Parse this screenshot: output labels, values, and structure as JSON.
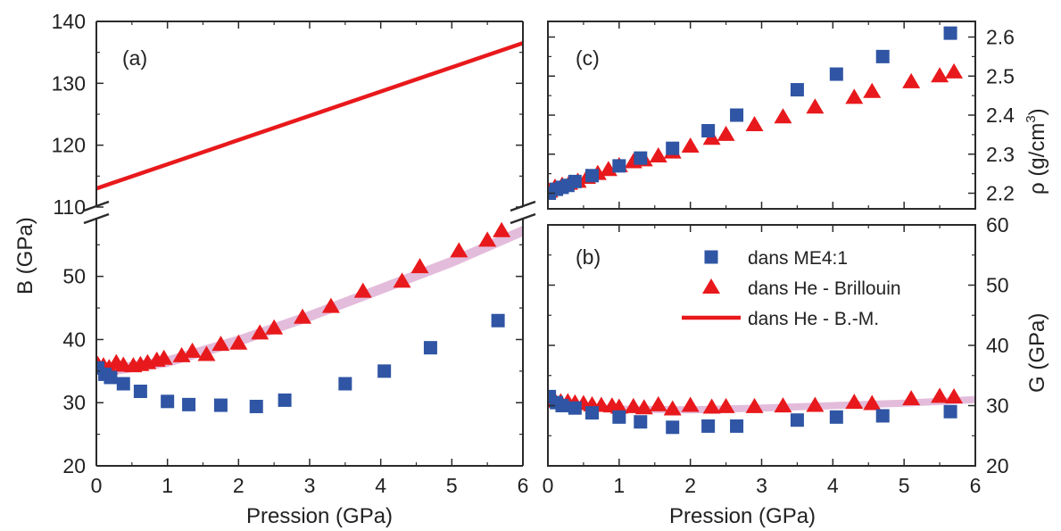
{
  "colors": {
    "blue": "#2f55a4",
    "red": "#e8191c",
    "band": "#d9a6cf",
    "axis": "#2a2a2a"
  },
  "chart_data": [
    {
      "panel": "(a)",
      "type": "scatter",
      "xlabel": "Pression (GPa)",
      "ylabel": "B (GPa)",
      "xlim": [
        0,
        6
      ],
      "xticks": [
        "0",
        "1",
        "2",
        "3",
        "4",
        "5",
        "6"
      ],
      "axis_break": true,
      "ylim_lower": [
        20,
        59
      ],
      "yticks_lower": [
        "20",
        "30",
        "40",
        "50"
      ],
      "ylim_upper": [
        110,
        140
      ],
      "yticks_upper": [
        "110",
        "120",
        "130",
        "140"
      ],
      "series": [
        {
          "name": "dans ME4:1",
          "marker": "square",
          "color": "#2f55a4",
          "x": [
            0.02,
            0.12,
            0.2,
            0.38,
            0.62,
            1.0,
            1.3,
            1.75,
            2.25,
            2.65,
            3.5,
            4.05,
            4.7,
            5.65
          ],
          "y": [
            35.5,
            34.5,
            34.0,
            33.0,
            31.8,
            30.2,
            29.7,
            29.6,
            29.4,
            30.4,
            33.0,
            35.0,
            38.7,
            43.0
          ]
        },
        {
          "name": "dans He - Brillouin",
          "marker": "triangle",
          "color": "#e8191c",
          "x": [
            0.02,
            0.1,
            0.18,
            0.28,
            0.38,
            0.52,
            0.62,
            0.72,
            0.85,
            0.95,
            1.2,
            1.35,
            1.55,
            1.75,
            2.0,
            2.3,
            2.5,
            2.9,
            3.3,
            3.75,
            4.3,
            4.55,
            5.1,
            5.5,
            5.7
          ],
          "y": [
            36.0,
            35.8,
            35.5,
            36.3,
            35.9,
            35.8,
            36.0,
            36.3,
            36.7,
            37.0,
            37.4,
            38.1,
            37.6,
            39.2,
            39.4,
            41.0,
            41.8,
            43.5,
            45.2,
            47.6,
            49.2,
            51.5,
            54.0,
            55.7,
            57.2
          ]
        },
        {
          "name": "dans He - B.-M.",
          "type": "line",
          "color": "#e8191c",
          "x": [
            0,
            6
          ],
          "y": [
            113.0,
            136.5
          ]
        }
      ],
      "band": {
        "x": [
          0.1,
          1.0,
          2.0,
          3.0,
          4.0,
          5.0,
          6.0
        ],
        "y": [
          35.0,
          36.5,
          39.8,
          43.7,
          48.0,
          52.3,
          57.2
        ]
      }
    },
    {
      "panel": "(c)",
      "type": "scatter",
      "xlabel": "",
      "ylabel": "ρ (g/cm³)",
      "ylabel_main": "ρ (g/cm",
      "ylabel_sup": "3",
      "ylabel_close": ")",
      "xlim": [
        0,
        6
      ],
      "ylim": [
        2.16,
        2.64
      ],
      "yticks": [
        "2.2",
        "2.3",
        "2.4",
        "2.5",
        "2.6"
      ],
      "series": [
        {
          "name": "dans ME4:1",
          "marker": "square",
          "color": "#2f55a4",
          "x": [
            0.02,
            0.12,
            0.2,
            0.28,
            0.38,
            0.62,
            1.0,
            1.3,
            1.75,
            2.25,
            2.65,
            3.5,
            4.05,
            4.7,
            5.65
          ],
          "y": [
            2.2,
            2.21,
            2.215,
            2.22,
            2.23,
            2.245,
            2.27,
            2.29,
            2.315,
            2.36,
            2.4,
            2.465,
            2.505,
            2.55,
            2.61
          ]
        },
        {
          "name": "dans He - Brillouin",
          "marker": "triangle",
          "color": "#e8191c",
          "x": [
            0.02,
            0.1,
            0.2,
            0.3,
            0.42,
            0.55,
            0.7,
            0.85,
            1.0,
            1.2,
            1.35,
            1.55,
            1.75,
            2.0,
            2.3,
            2.5,
            2.9,
            3.3,
            3.75,
            4.3,
            4.55,
            5.1,
            5.5,
            5.7
          ],
          "y": [
            2.205,
            2.215,
            2.22,
            2.225,
            2.23,
            2.24,
            2.25,
            2.26,
            2.27,
            2.28,
            2.285,
            2.295,
            2.305,
            2.32,
            2.34,
            2.35,
            2.375,
            2.395,
            2.42,
            2.445,
            2.46,
            2.485,
            2.5,
            2.51
          ]
        }
      ]
    },
    {
      "panel": "(b)",
      "type": "scatter",
      "xlabel": "Pression (GPa)",
      "ylabel": "G (GPa)",
      "xlim": [
        0,
        6
      ],
      "xticks": [
        "0",
        "1",
        "2",
        "3",
        "4",
        "5",
        "6"
      ],
      "ylim": [
        20,
        60
      ],
      "yticks": [
        "20",
        "30",
        "40",
        "50",
        "60"
      ],
      "legend": {
        "position": "top-right",
        "entries": [
          "dans ME4:1",
          "dans He - Brillouin",
          "dans He - B.-M."
        ]
      },
      "series": [
        {
          "name": "dans ME4:1",
          "marker": "square",
          "color": "#2f55a4",
          "x": [
            0.02,
            0.12,
            0.2,
            0.38,
            0.62,
            1.0,
            1.3,
            1.75,
            2.25,
            2.65,
            3.5,
            4.05,
            4.7,
            5.65
          ],
          "y": [
            31.5,
            30.5,
            30.0,
            29.6,
            28.8,
            28.1,
            27.3,
            26.4,
            26.6,
            26.6,
            27.6,
            28.1,
            28.3,
            29.0
          ]
        },
        {
          "name": "dans He - Brillouin",
          "marker": "triangle",
          "color": "#e8191c",
          "x": [
            0.02,
            0.1,
            0.18,
            0.28,
            0.38,
            0.5,
            0.62,
            0.75,
            0.9,
            1.0,
            1.2,
            1.35,
            1.55,
            1.75,
            2.0,
            2.3,
            2.5,
            2.9,
            3.3,
            3.75,
            4.3,
            4.55,
            5.1,
            5.5,
            5.7
          ],
          "y": [
            30.8,
            30.7,
            30.6,
            30.6,
            30.4,
            30.3,
            30.1,
            30.0,
            29.9,
            29.7,
            29.8,
            29.6,
            30.1,
            29.4,
            30.0,
            29.7,
            29.8,
            29.8,
            29.9,
            30.0,
            30.5,
            30.3,
            31.1,
            31.5,
            31.4
          ]
        }
      ],
      "band": {
        "x": [
          0.1,
          1.0,
          2.0,
          3.0,
          4.0,
          5.0,
          6.0
        ],
        "y": [
          30.3,
          29.4,
          29.3,
          29.6,
          30.0,
          30.4,
          31.0
        ]
      }
    }
  ]
}
